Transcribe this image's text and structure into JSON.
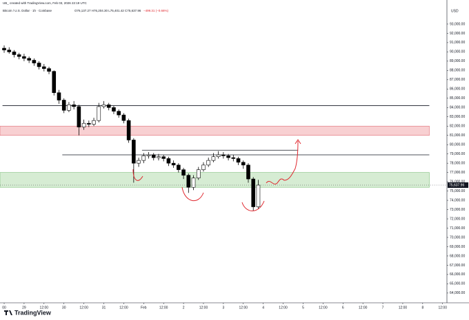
{
  "header": {
    "credit": "UB_ created with TradingView.com, Feb 03, 2026 22:19 UTC",
    "symbol": "Bitcoin / U.S. Dollar · 1h · Coinbase",
    "ohlc": "O76,137.27 H76,204.30 L75,401.42 C75,637.96",
    "change": "−499.31 (−0.66%)"
  },
  "footer_logo": "TradingView",
  "chart_data": {
    "type": "candlestick",
    "currency": "USD",
    "x": [
      0,
      3,
      6,
      9,
      12,
      15,
      18,
      21,
      24,
      27,
      30,
      33,
      36,
      39,
      42,
      45,
      48,
      51,
      54,
      57,
      60,
      63,
      66,
      69,
      72,
      75,
      78,
      81,
      84,
      87,
      90,
      93,
      96,
      99,
      102,
      105,
      108,
      111,
      114,
      117,
      120,
      123,
      126,
      129,
      132,
      135,
      138,
      141,
      144,
      147,
      150,
      153
    ],
    "open": [
      90400,
      90200,
      90000,
      89700,
      89500,
      89300,
      89100,
      88800,
      88400,
      88200,
      87900,
      85600,
      84800,
      83700,
      84300,
      84100,
      81900,
      82300,
      82200,
      82600,
      84100,
      84300,
      84000,
      83600,
      83200,
      82600,
      80500,
      78000,
      78300,
      78800,
      78900,
      78600,
      78700,
      78500,
      78000,
      77800,
      77300,
      76700,
      75400,
      76400,
      77300,
      77800,
      78300,
      78700,
      78900,
      78800,
      78600,
      78500,
      78100,
      77800,
      76300,
      73300
    ],
    "high": [
      90700,
      90500,
      90200,
      89900,
      89800,
      89500,
      89300,
      89000,
      88700,
      88400,
      88000,
      85900,
      85000,
      84600,
      84700,
      84300,
      82700,
      82600,
      82900,
      84500,
      84700,
      84500,
      84200,
      83800,
      83400,
      82800,
      80700,
      78600,
      79100,
      79200,
      79100,
      79000,
      78900,
      78700,
      78300,
      78000,
      77500,
      76900,
      76700,
      77600,
      78100,
      78600,
      79100,
      79300,
      79200,
      79000,
      78900,
      78700,
      78300,
      78000,
      76500,
      76204.3
    ],
    "low": [
      89900,
      89800,
      89400,
      89200,
      89000,
      88800,
      88500,
      88100,
      87900,
      87600,
      85300,
      84400,
      83400,
      83500,
      83800,
      81000,
      81600,
      81900,
      82000,
      82400,
      83900,
      83700,
      83300,
      82900,
      82300,
      80200,
      75900,
      77600,
      78000,
      78500,
      78300,
      78300,
      78200,
      77700,
      77500,
      77000,
      76300,
      74800,
      75100,
      76200,
      77100,
      77600,
      78100,
      78500,
      78500,
      78300,
      78200,
      77800,
      77400,
      75900,
      72900,
      73100
    ],
    "close": [
      90200,
      90000,
      89700,
      89500,
      89300,
      89100,
      88800,
      88400,
      88200,
      87900,
      85600,
      84800,
      83700,
      84300,
      84100,
      81900,
      82300,
      82200,
      82600,
      84100,
      84300,
      84000,
      83600,
      83200,
      82600,
      80500,
      78000,
      78300,
      78800,
      78900,
      78600,
      78700,
      78500,
      78000,
      77800,
      77300,
      76700,
      75400,
      76400,
      77300,
      77800,
      78300,
      78700,
      78900,
      78800,
      78600,
      78500,
      78100,
      77800,
      76300,
      73300,
      75637.96
    ],
    "up_color": "#ffffff",
    "down_color": "#000000",
    "last_price": {
      "value": 75637.96,
      "label": "75,637.96"
    },
    "levels": [
      {
        "price": 84200,
        "from": -1,
        "to": 256
      },
      {
        "price": 78900,
        "from": 35,
        "to": 256
      },
      {
        "price": 79400,
        "from": 83,
        "to": 177
      }
    ],
    "zones": [
      {
        "from": 81000,
        "to": 82000,
        "color": "#f8d0d2",
        "border": "#e06c75"
      },
      {
        "from": 75400,
        "to": 77000,
        "color": "#d6ecd3",
        "border": "#7cbf78"
      }
    ],
    "xlim": [
      -2.5,
      266.6
    ],
    "ylim": [
      63100,
      95000
    ],
    "xticks": [
      {
        "value": 0,
        "label": "00"
      },
      {
        "value": 12,
        "label": "29"
      },
      {
        "value": 24,
        "label": "12:00"
      },
      {
        "value": 36,
        "label": "30"
      },
      {
        "value": 48,
        "label": "12:00"
      },
      {
        "value": 60,
        "label": "31"
      },
      {
        "value": 72,
        "label": "12:00"
      },
      {
        "value": 84,
        "label": "Feb"
      },
      {
        "value": 96,
        "label": "12:00"
      },
      {
        "value": 108,
        "label": "2"
      },
      {
        "value": 120,
        "label": "12:00"
      },
      {
        "value": 132,
        "label": "3"
      },
      {
        "value": 144,
        "label": "12:00"
      },
      {
        "value": 156,
        "label": "4"
      },
      {
        "value": 168,
        "label": "12:00"
      },
      {
        "value": 180,
        "label": "5"
      },
      {
        "value": 192,
        "label": "12:00"
      },
      {
        "value": 204,
        "label": "6"
      },
      {
        "value": 216,
        "label": "12:00"
      },
      {
        "value": 228,
        "label": "7"
      },
      {
        "value": 240,
        "label": "12:00"
      },
      {
        "value": 252,
        "label": "8"
      },
      {
        "value": 264,
        "label": "12:00"
      }
    ],
    "yticks": [
      {
        "value": 64000,
        "label": "64,000.00"
      },
      {
        "value": 65000,
        "label": "65,000.00"
      },
      {
        "value": 66000,
        "label": "66,000.00"
      },
      {
        "value": 67000,
        "label": "67,000.00"
      },
      {
        "value": 68000,
        "label": "68,000.00"
      },
      {
        "value": 69000,
        "label": "69,000.00"
      },
      {
        "value": 70000,
        "label": "70,000.00"
      },
      {
        "value": 71000,
        "label": "71,000.00"
      },
      {
        "value": 72000,
        "label": "72,000.00"
      },
      {
        "value": 73000,
        "label": "73,000.00"
      },
      {
        "value": 74000,
        "label": "74,000.00"
      },
      {
        "value": 75000,
        "label": "75,000.00"
      },
      {
        "value": 76000,
        "label": "76,000.00"
      },
      {
        "value": 77000,
        "label": "77,000.00"
      },
      {
        "value": 78000,
        "label": "78,000.00"
      },
      {
        "value": 79000,
        "label": "79,000.00"
      },
      {
        "value": 80000,
        "label": "80,000.00"
      },
      {
        "value": 81000,
        "label": "81,000.00"
      },
      {
        "value": 82000,
        "label": "82,000.00"
      },
      {
        "value": 83000,
        "label": "83,000.00"
      },
      {
        "value": 84000,
        "label": "84,000.00"
      },
      {
        "value": 85000,
        "label": "85,000.00"
      },
      {
        "value": 86000,
        "label": "86,000.00"
      },
      {
        "value": 87000,
        "label": "87,000.00"
      },
      {
        "value": 88000,
        "label": "88,000.00"
      },
      {
        "value": 89000,
        "label": "89,000.00"
      },
      {
        "value": 90000,
        "label": "90,000.00"
      },
      {
        "value": 91000,
        "label": "91,000.00"
      },
      {
        "value": 92000,
        "label": "92,000.00"
      },
      {
        "value": 93000,
        "label": "93,000.00"
      }
    ]
  }
}
